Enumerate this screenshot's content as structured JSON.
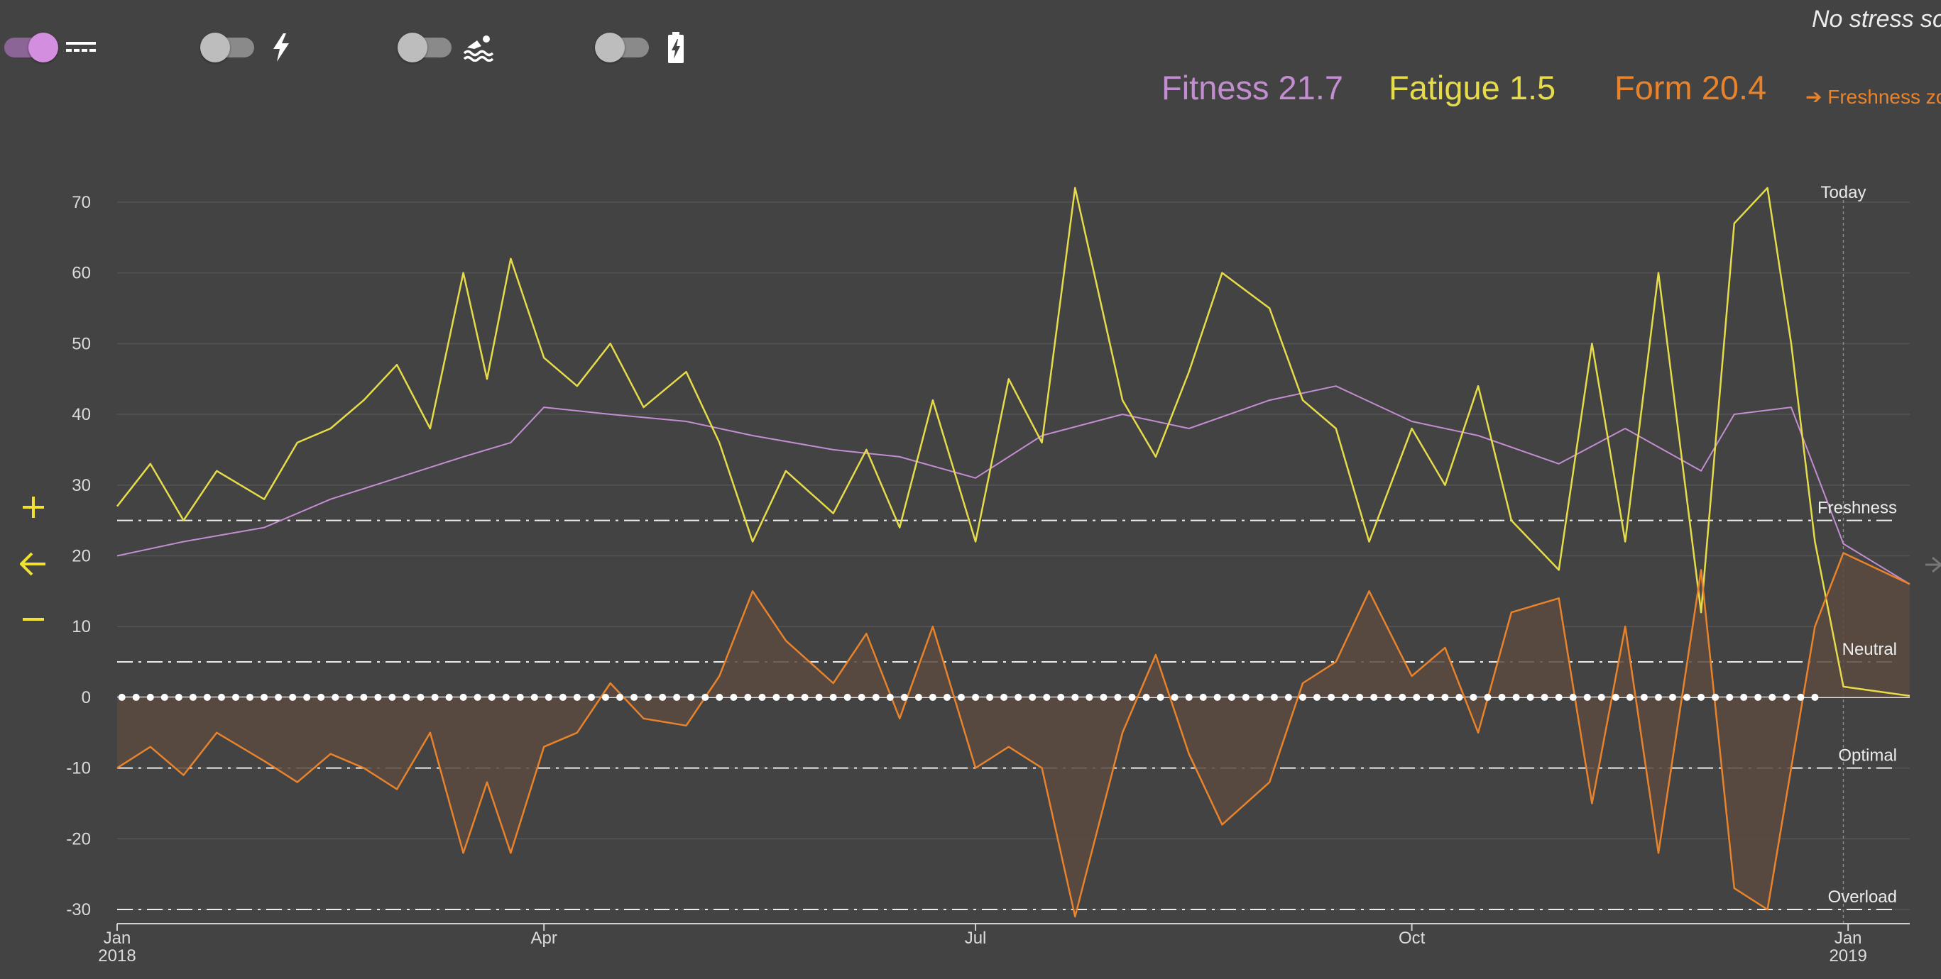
{
  "toggles": [
    {
      "name": "fitness-fatigue",
      "on": true,
      "icon": "stacked-lines-icon"
    },
    {
      "name": "power",
      "on": false,
      "icon": "lightning-icon"
    },
    {
      "name": "swim",
      "on": false,
      "icon": "swimmer-icon"
    },
    {
      "name": "battery",
      "on": false,
      "icon": "battery-charging-icon"
    }
  ],
  "header": {
    "no_stress": "No stress sc",
    "fitness": "Fitness 21.7",
    "fatigue": "Fatigue 1.5",
    "form": "Form 20.4",
    "freshness_link": "➔ Freshness zo"
  },
  "controls": {
    "zoom_in": "+",
    "back": "←",
    "zoom_out": "−"
  },
  "colors": {
    "background": "#434343",
    "fitness": "#c38ed1",
    "fatigue": "#e6dc4a",
    "form": "#e8832c",
    "form_fill": "#5a4a40",
    "zero_line": "#ffffff",
    "grid": "#545454"
  },
  "chart_data": {
    "type": "line",
    "x_start": "2018-01-01",
    "x_end": "2019-01-14",
    "today": "2018-12-31",
    "today_label": "Today",
    "ylim": [
      -32,
      74
    ],
    "yticks": [
      70,
      60,
      50,
      40,
      30,
      20,
      10,
      0,
      -10,
      -20,
      -30
    ],
    "xticks": [
      {
        "date": "2018-01-01",
        "label": "Jan",
        "label2": "2018"
      },
      {
        "date": "2018-04-01",
        "label": "Apr",
        "label2": ""
      },
      {
        "date": "2018-07-01",
        "label": "Jul",
        "label2": ""
      },
      {
        "date": "2018-10-01",
        "label": "Oct",
        "label2": ""
      },
      {
        "date": "2019-01-01",
        "label": "Jan",
        "label2": "2019"
      }
    ],
    "zones": [
      {
        "label": "Freshness",
        "y": 25
      },
      {
        "label": "Neutral",
        "y": 5
      },
      {
        "label": "Optimal",
        "y": -10
      },
      {
        "label": "Overload",
        "y": -30
      }
    ],
    "series": [
      {
        "name": "Fitness",
        "points": [
          [
            "2018-01-01",
            20
          ],
          [
            "2018-01-15",
            22
          ],
          [
            "2018-02-01",
            24
          ],
          [
            "2018-02-15",
            28
          ],
          [
            "2018-03-01",
            31
          ],
          [
            "2018-03-15",
            34
          ],
          [
            "2018-03-25",
            36
          ],
          [
            "2018-04-01",
            41
          ],
          [
            "2018-04-15",
            40
          ],
          [
            "2018-05-01",
            39
          ],
          [
            "2018-05-15",
            37
          ],
          [
            "2018-06-01",
            35
          ],
          [
            "2018-06-15",
            34
          ],
          [
            "2018-07-01",
            31
          ],
          [
            "2018-07-15",
            37
          ],
          [
            "2018-08-01",
            40
          ],
          [
            "2018-08-15",
            38
          ],
          [
            "2018-09-01",
            42
          ],
          [
            "2018-09-15",
            44
          ],
          [
            "2018-10-01",
            39
          ],
          [
            "2018-10-15",
            37
          ],
          [
            "2018-11-01",
            33
          ],
          [
            "2018-11-15",
            38
          ],
          [
            "2018-12-01",
            32
          ],
          [
            "2018-12-08",
            40
          ],
          [
            "2018-12-20",
            41
          ],
          [
            "2018-12-31",
            21.7
          ],
          [
            "2019-01-14",
            16
          ]
        ]
      },
      {
        "name": "Fatigue",
        "points": [
          [
            "2018-01-01",
            27
          ],
          [
            "2018-01-08",
            33
          ],
          [
            "2018-01-15",
            25
          ],
          [
            "2018-01-22",
            32
          ],
          [
            "2018-02-01",
            28
          ],
          [
            "2018-02-08",
            36
          ],
          [
            "2018-02-15",
            38
          ],
          [
            "2018-02-22",
            42
          ],
          [
            "2018-03-01",
            47
          ],
          [
            "2018-03-08",
            38
          ],
          [
            "2018-03-15",
            60
          ],
          [
            "2018-03-20",
            45
          ],
          [
            "2018-03-25",
            62
          ],
          [
            "2018-04-01",
            48
          ],
          [
            "2018-04-08",
            44
          ],
          [
            "2018-04-15",
            50
          ],
          [
            "2018-04-22",
            41
          ],
          [
            "2018-05-01",
            46
          ],
          [
            "2018-05-08",
            36
          ],
          [
            "2018-05-15",
            22
          ],
          [
            "2018-05-22",
            32
          ],
          [
            "2018-06-01",
            26
          ],
          [
            "2018-06-08",
            35
          ],
          [
            "2018-06-15",
            24
          ],
          [
            "2018-06-22",
            42
          ],
          [
            "2018-07-01",
            22
          ],
          [
            "2018-07-08",
            45
          ],
          [
            "2018-07-15",
            36
          ],
          [
            "2018-07-22",
            72
          ],
          [
            "2018-08-01",
            42
          ],
          [
            "2018-08-08",
            34
          ],
          [
            "2018-08-15",
            46
          ],
          [
            "2018-08-22",
            60
          ],
          [
            "2018-09-01",
            55
          ],
          [
            "2018-09-08",
            42
          ],
          [
            "2018-09-15",
            38
          ],
          [
            "2018-09-22",
            22
          ],
          [
            "2018-10-01",
            38
          ],
          [
            "2018-10-08",
            30
          ],
          [
            "2018-10-15",
            44
          ],
          [
            "2018-10-22",
            25
          ],
          [
            "2018-11-01",
            18
          ],
          [
            "2018-11-08",
            50
          ],
          [
            "2018-11-15",
            22
          ],
          [
            "2018-11-22",
            60
          ],
          [
            "2018-12-01",
            12
          ],
          [
            "2018-12-08",
            67
          ],
          [
            "2018-12-15",
            72
          ],
          [
            "2018-12-20",
            50
          ],
          [
            "2018-12-25",
            22
          ],
          [
            "2018-12-31",
            1.5
          ],
          [
            "2019-01-14",
            0.2
          ]
        ]
      },
      {
        "name": "Form",
        "points": [
          [
            "2018-01-01",
            -10
          ],
          [
            "2018-01-08",
            -7
          ],
          [
            "2018-01-15",
            -11
          ],
          [
            "2018-01-22",
            -5
          ],
          [
            "2018-02-01",
            -9
          ],
          [
            "2018-02-08",
            -12
          ],
          [
            "2018-02-15",
            -8
          ],
          [
            "2018-02-22",
            -10
          ],
          [
            "2018-03-01",
            -13
          ],
          [
            "2018-03-08",
            -5
          ],
          [
            "2018-03-15",
            -22
          ],
          [
            "2018-03-20",
            -12
          ],
          [
            "2018-03-25",
            -22
          ],
          [
            "2018-04-01",
            -7
          ],
          [
            "2018-04-08",
            -5
          ],
          [
            "2018-04-15",
            2
          ],
          [
            "2018-04-22",
            -3
          ],
          [
            "2018-05-01",
            -4
          ],
          [
            "2018-05-08",
            3
          ],
          [
            "2018-05-15",
            15
          ],
          [
            "2018-05-22",
            8
          ],
          [
            "2018-06-01",
            2
          ],
          [
            "2018-06-08",
            9
          ],
          [
            "2018-06-15",
            -3
          ],
          [
            "2018-06-22",
            10
          ],
          [
            "2018-07-01",
            -10
          ],
          [
            "2018-07-08",
            -7
          ],
          [
            "2018-07-15",
            -10
          ],
          [
            "2018-07-22",
            -31
          ],
          [
            "2018-08-01",
            -5
          ],
          [
            "2018-08-08",
            6
          ],
          [
            "2018-08-15",
            -8
          ],
          [
            "2018-08-22",
            -18
          ],
          [
            "2018-09-01",
            -12
          ],
          [
            "2018-09-08",
            2
          ],
          [
            "2018-09-15",
            5
          ],
          [
            "2018-09-22",
            15
          ],
          [
            "2018-10-01",
            3
          ],
          [
            "2018-10-08",
            7
          ],
          [
            "2018-10-15",
            -5
          ],
          [
            "2018-10-22",
            12
          ],
          [
            "2018-11-01",
            14
          ],
          [
            "2018-11-08",
            -15
          ],
          [
            "2018-11-15",
            10
          ],
          [
            "2018-11-22",
            -22
          ],
          [
            "2018-12-01",
            18
          ],
          [
            "2018-12-08",
            -27
          ],
          [
            "2018-12-15",
            -30
          ],
          [
            "2018-12-20",
            -10
          ],
          [
            "2018-12-25",
            10
          ],
          [
            "2018-12-31",
            20.4
          ],
          [
            "2019-01-14",
            16
          ]
        ]
      }
    ]
  }
}
